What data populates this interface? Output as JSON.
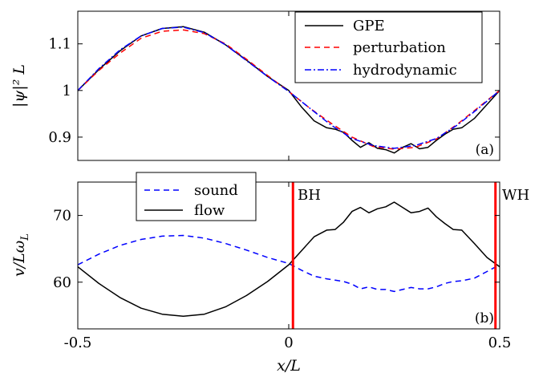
{
  "chart_data": [
    {
      "type": "line",
      "panel_label": "(a)",
      "ylabel": "|ψ|² L",
      "xlim": [
        -0.5,
        0.5
      ],
      "ylim": [
        0.85,
        1.17
      ],
      "yticks": [
        "0.9",
        "1",
        "1.1"
      ],
      "ytick_values": [
        0.9,
        1.0,
        1.1
      ],
      "legend_position": "top-right",
      "legend": [
        "GPE",
        "perturbation",
        "hydrodynamic"
      ],
      "series": [
        {
          "name": "GPE",
          "color": "#000000",
          "style": "solid",
          "x": [
            -0.5,
            -0.45,
            -0.4,
            -0.35,
            -0.3,
            -0.25,
            -0.2,
            -0.15,
            -0.1,
            -0.05,
            0.0,
            0.03,
            0.06,
            0.09,
            0.11,
            0.13,
            0.15,
            0.17,
            0.19,
            0.21,
            0.23,
            0.25,
            0.27,
            0.29,
            0.31,
            0.33,
            0.35,
            0.37,
            0.39,
            0.41,
            0.44,
            0.47,
            0.5
          ],
          "values": [
            1.0,
            1.045,
            1.085,
            1.117,
            1.133,
            1.137,
            1.125,
            1.098,
            1.065,
            1.03,
            1.0,
            0.965,
            0.935,
            0.92,
            0.917,
            0.91,
            0.893,
            0.878,
            0.888,
            0.876,
            0.873,
            0.866,
            0.878,
            0.886,
            0.875,
            0.878,
            0.893,
            0.906,
            0.917,
            0.92,
            0.94,
            0.97,
            1.0
          ]
        },
        {
          "name": "perturbation",
          "color": "#ff0000",
          "style": "dashed",
          "x": [
            -0.5,
            -0.45,
            -0.4,
            -0.35,
            -0.3,
            -0.25,
            -0.2,
            -0.15,
            -0.1,
            -0.05,
            0.0,
            0.05,
            0.1,
            0.15,
            0.2,
            0.25,
            0.3,
            0.35,
            0.4,
            0.45,
            0.5
          ],
          "values": [
            1.0,
            1.043,
            1.08,
            1.112,
            1.127,
            1.13,
            1.122,
            1.1,
            1.067,
            1.032,
            0.998,
            0.962,
            0.93,
            0.9,
            0.88,
            0.874,
            0.878,
            0.896,
            0.928,
            0.964,
            1.0
          ]
        },
        {
          "name": "hydrodynamic",
          "color": "#0000ff",
          "style": "dashdot",
          "x": [
            -0.5,
            -0.45,
            -0.4,
            -0.35,
            -0.3,
            -0.25,
            -0.2,
            -0.15,
            -0.1,
            -0.05,
            0.0,
            0.05,
            0.1,
            0.15,
            0.2,
            0.25,
            0.3,
            0.35,
            0.4,
            0.45,
            0.5
          ],
          "values": [
            1.0,
            1.047,
            1.087,
            1.117,
            1.133,
            1.136,
            1.124,
            1.098,
            1.064,
            1.03,
            0.998,
            0.962,
            0.926,
            0.897,
            0.882,
            0.876,
            0.882,
            0.897,
            0.926,
            0.962,
            1.0
          ]
        }
      ]
    },
    {
      "type": "line",
      "panel_label": "(b)",
      "xlabel": "x/L",
      "ylabel": "v/Lω",
      "ylabel_sub": "L",
      "xlim": [
        -0.5,
        0.5
      ],
      "ylim": [
        53,
        75
      ],
      "xticks": [
        "-0.5",
        "0",
        "0.5"
      ],
      "xtick_values": [
        -0.5,
        0.0,
        0.5
      ],
      "yticks": [
        "60",
        "70"
      ],
      "ytick_values": [
        60,
        70
      ],
      "legend_position": "top-left",
      "legend": [
        "sound",
        "flow"
      ],
      "annotations": [
        {
          "text": "BH",
          "x": 0.01
        },
        {
          "text": "WH",
          "x": 0.49
        }
      ],
      "vlines": [
        0.01,
        0.49
      ],
      "vline_color": "#ff0000",
      "series": [
        {
          "name": "sound",
          "color": "#0000ff",
          "style": "dashed",
          "x": [
            -0.5,
            -0.45,
            -0.4,
            -0.35,
            -0.3,
            -0.25,
            -0.2,
            -0.15,
            -0.1,
            -0.05,
            0.0,
            0.03,
            0.06,
            0.09,
            0.11,
            0.13,
            0.15,
            0.17,
            0.19,
            0.21,
            0.23,
            0.25,
            0.27,
            0.29,
            0.31,
            0.33,
            0.35,
            0.37,
            0.39,
            0.41,
            0.44,
            0.47,
            0.5
          ],
          "values": [
            62.6,
            64.2,
            65.5,
            66.4,
            66.9,
            67.0,
            66.6,
            65.8,
            64.8,
            63.7,
            62.8,
            61.8,
            60.9,
            60.5,
            60.3,
            60.1,
            59.7,
            59.0,
            59.3,
            58.9,
            58.9,
            58.6,
            58.9,
            59.2,
            59.0,
            59.0,
            59.3,
            59.8,
            60.1,
            60.2,
            60.6,
            61.6,
            62.6
          ]
        },
        {
          "name": "flow",
          "color": "#000000",
          "style": "solid",
          "x": [
            -0.5,
            -0.45,
            -0.4,
            -0.35,
            -0.3,
            -0.25,
            -0.2,
            -0.15,
            -0.1,
            -0.05,
            0.0,
            0.03,
            0.06,
            0.09,
            0.11,
            0.13,
            0.15,
            0.17,
            0.19,
            0.21,
            0.23,
            0.25,
            0.27,
            0.29,
            0.31,
            0.33,
            0.35,
            0.37,
            0.39,
            0.41,
            0.44,
            0.47,
            0.5
          ],
          "values": [
            62.3,
            59.8,
            57.7,
            56.1,
            55.2,
            54.9,
            55.2,
            56.3,
            58.0,
            60.1,
            62.6,
            64.7,
            66.8,
            67.8,
            67.9,
            69.0,
            70.6,
            71.2,
            70.4,
            71.0,
            71.3,
            72.0,
            71.2,
            70.4,
            70.6,
            71.1,
            69.8,
            68.8,
            67.9,
            67.8,
            65.8,
            63.7,
            62.3
          ]
        }
      ]
    }
  ]
}
